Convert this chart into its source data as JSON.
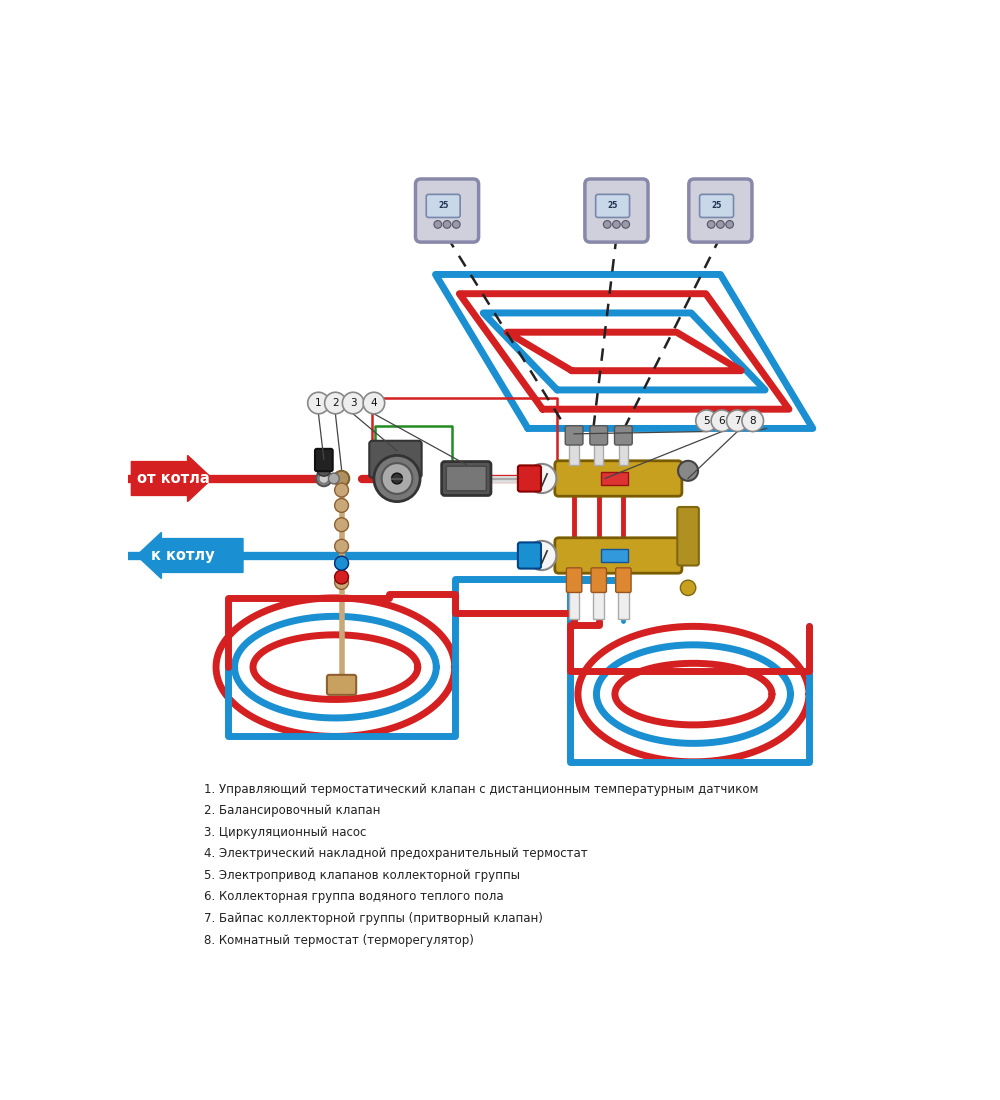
{
  "bg_color": "#ffffff",
  "red": "#d42020",
  "blue": "#1a8fd1",
  "green": "#228B22",
  "gold": "#c8a020",
  "gray": "#999999",
  "light_gray": "#d0d0dc",
  "dark": "#222222",
  "pipe_lw": 6,
  "label_from_boiler": "от котла",
  "label_to_boiler": "к котлу",
  "legend_items": [
    "1. Управляющий термостатический клапан с дистанционным температурным датчиком",
    "2. Балансировочный клапан",
    "3. Циркуляционный насос",
    "4. Электрический накладной предохранительный термостат",
    "5. Электропривод клапанов коллекторной группы",
    "6. Коллекторная группа водяного теплого пола",
    "7. Байпас коллекторной группы (притворный клапан)",
    "8. Комнатный термостат (терморегулятор)"
  ]
}
